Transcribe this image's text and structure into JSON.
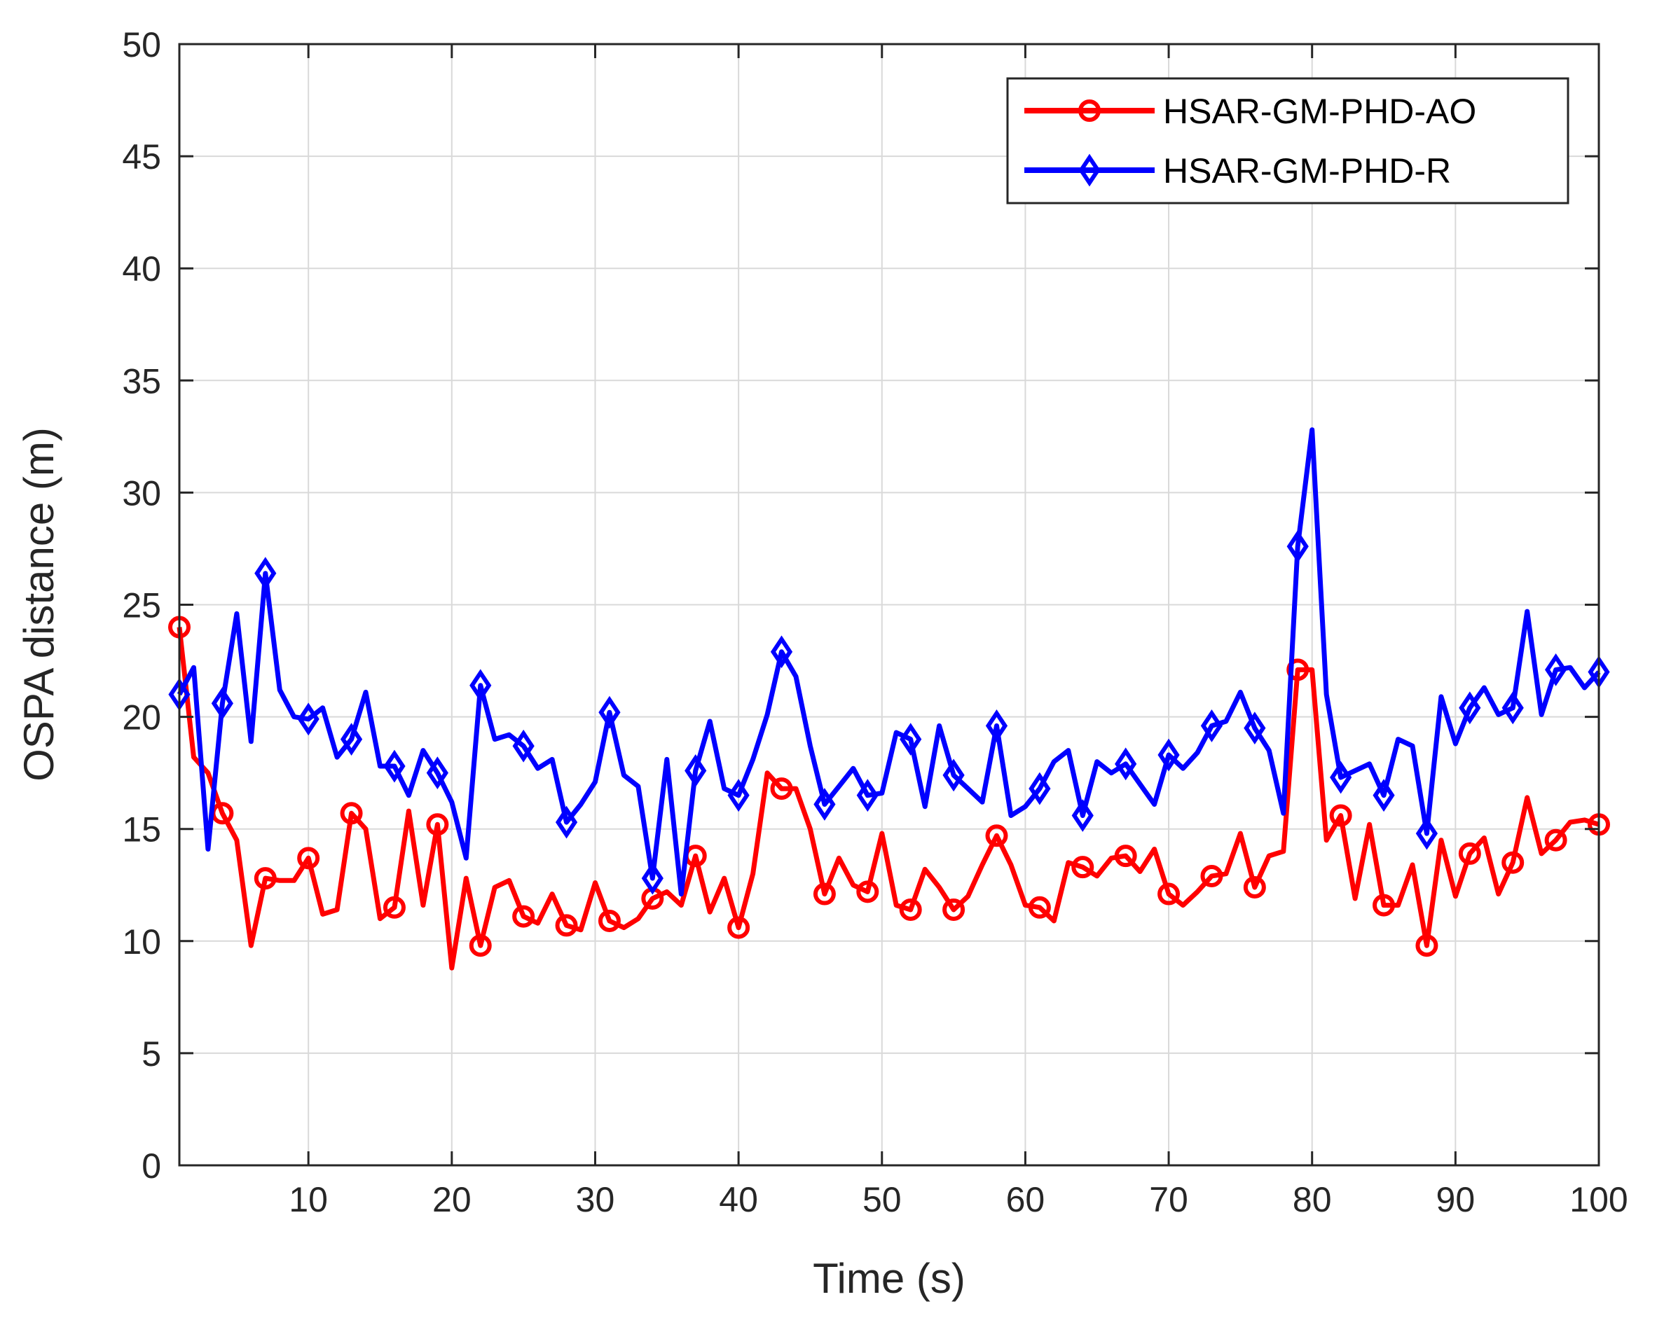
{
  "chart_data": {
    "type": "line",
    "title": "",
    "xlabel": "Time (s)",
    "ylabel": "OSPA distance (m)",
    "xlim": [
      1,
      100
    ],
    "ylim": [
      0,
      50
    ],
    "xticks": [
      10,
      20,
      30,
      40,
      50,
      60,
      70,
      80,
      90,
      100
    ],
    "yticks": [
      0,
      5,
      10,
      15,
      20,
      25,
      30,
      35,
      40,
      45,
      50
    ],
    "grid": true,
    "legend_position": "top-right",
    "x": [
      1,
      2,
      3,
      4,
      5,
      6,
      7,
      8,
      9,
      10,
      11,
      12,
      13,
      14,
      15,
      16,
      17,
      18,
      19,
      20,
      21,
      22,
      23,
      24,
      25,
      26,
      27,
      28,
      29,
      30,
      31,
      32,
      33,
      34,
      35,
      36,
      37,
      38,
      39,
      40,
      41,
      42,
      43,
      44,
      45,
      46,
      47,
      48,
      49,
      50,
      51,
      52,
      53,
      54,
      55,
      56,
      57,
      58,
      59,
      60,
      61,
      62,
      63,
      64,
      65,
      66,
      67,
      68,
      69,
      70,
      71,
      72,
      73,
      74,
      75,
      76,
      77,
      78,
      79,
      80,
      81,
      82,
      83,
      84,
      85,
      86,
      87,
      88,
      89,
      90,
      91,
      92,
      93,
      94,
      95,
      96,
      97,
      98,
      99,
      100
    ],
    "series": [
      {
        "name": "HSAR-GM-PHD-AO",
        "color": "#ff0000",
        "marker": "circle",
        "marker_every": 3,
        "values": [
          24.0,
          18.2,
          17.5,
          15.7,
          14.5,
          9.8,
          12.8,
          12.7,
          12.7,
          13.7,
          11.2,
          11.4,
          15.7,
          15.0,
          11.0,
          11.5,
          15.8,
          11.6,
          15.2,
          8.8,
          12.8,
          9.8,
          12.4,
          12.7,
          11.1,
          10.8,
          12.1,
          10.7,
          10.5,
          12.6,
          10.9,
          10.6,
          11.0,
          11.9,
          12.2,
          11.6,
          13.8,
          11.3,
          12.8,
          10.6,
          13.0,
          17.5,
          16.8,
          16.8,
          15.0,
          12.1,
          13.7,
          12.5,
          12.2,
          14.8,
          11.6,
          11.4,
          13.2,
          12.4,
          11.4,
          12.0,
          13.4,
          14.7,
          13.4,
          11.6,
          11.5,
          10.9,
          13.5,
          13.3,
          12.9,
          13.7,
          13.8,
          13.1,
          14.1,
          12.1,
          11.6,
          12.2,
          12.9,
          13.0,
          14.8,
          12.4,
          13.8,
          14.0,
          22.1,
          22.1,
          14.5,
          15.6,
          11.9,
          15.2,
          11.6,
          11.6,
          13.4,
          9.8,
          14.5,
          12.0,
          13.9,
          14.6,
          12.1,
          13.5,
          16.4,
          13.9,
          14.5,
          15.3,
          15.4,
          15.2
        ]
      },
      {
        "name": "HSAR-GM-PHD-R",
        "color": "#0000ff",
        "marker": "diamond",
        "marker_every": 3,
        "values": [
          21.0,
          22.2,
          14.1,
          20.6,
          24.6,
          18.9,
          26.4,
          21.2,
          20.0,
          19.9,
          20.4,
          18.2,
          19.0,
          21.1,
          17.8,
          17.8,
          16.5,
          18.5,
          17.5,
          16.2,
          13.7,
          21.4,
          19.0,
          19.2,
          18.7,
          17.7,
          18.1,
          15.3,
          16.1,
          17.1,
          20.2,
          17.4,
          16.9,
          12.8,
          18.1,
          12.1,
          17.6,
          19.8,
          16.8,
          16.5,
          18.1,
          20.1,
          22.9,
          21.8,
          18.7,
          16.1,
          16.9,
          17.7,
          16.5,
          16.6,
          19.3,
          19.0,
          16.0,
          19.6,
          17.4,
          16.8,
          16.2,
          19.6,
          15.6,
          16.0,
          16.8,
          18.0,
          18.5,
          15.6,
          18.0,
          17.5,
          17.9,
          17.0,
          16.1,
          18.3,
          17.7,
          18.4,
          19.6,
          19.8,
          21.1,
          19.5,
          18.5,
          15.7,
          27.6,
          32.8,
          21.0,
          17.3,
          17.6,
          17.9,
          16.5,
          19.0,
          18.7,
          14.8,
          20.9,
          18.8,
          20.4,
          21.3,
          20.1,
          20.4,
          24.7,
          20.1,
          22.1,
          22.2,
          21.3,
          22.0
        ]
      }
    ]
  }
}
